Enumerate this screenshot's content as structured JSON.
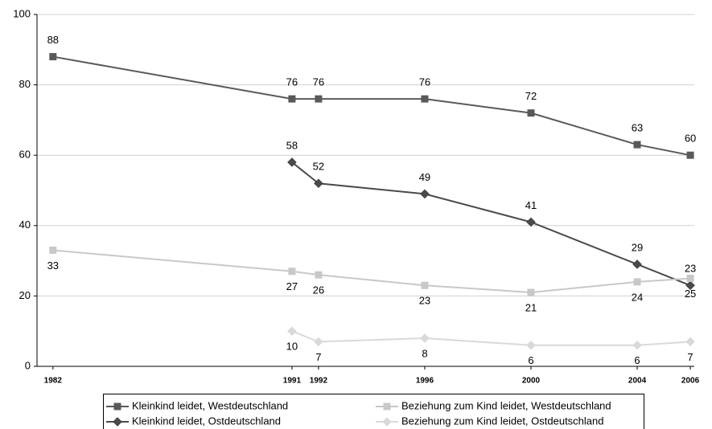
{
  "chart_data": {
    "type": "line",
    "x": [
      1982,
      1991,
      1992,
      1996,
      2000,
      2004,
      2006
    ],
    "xlim": [
      1981.4,
      2006.15
    ],
    "xticks": [
      1982,
      1991,
      1992,
      1996,
      2000,
      2004,
      2006
    ],
    "ylim": [
      0,
      100
    ],
    "yticks": [
      0,
      20,
      40,
      60,
      80,
      100
    ],
    "grid": true,
    "legend": "bottom",
    "series": [
      {
        "name": "Kleinkind leidet, Westdeutschland",
        "color": "#595959",
        "marker": "square",
        "values": [
          88,
          76,
          76,
          76,
          72,
          63,
          60
        ]
      },
      {
        "name": "Kleinkind leidet, Ostdeutschland",
        "color": "#4a4a4a",
        "marker": "diamond",
        "values": [
          null,
          58,
          52,
          49,
          41,
          29,
          23
        ]
      },
      {
        "name": "Beziehung zum Kind leidet, Westdeutschland",
        "color": "#c8c8c8",
        "marker": "square",
        "values": [
          33,
          27,
          26,
          23,
          21,
          24,
          25
        ]
      },
      {
        "name": "Beziehung zum Kind leidet, Ostdeutschland",
        "color": "#d9d9d9",
        "marker": "diamond",
        "values": [
          null,
          10,
          7,
          8,
          6,
          6,
          7
        ]
      }
    ]
  }
}
